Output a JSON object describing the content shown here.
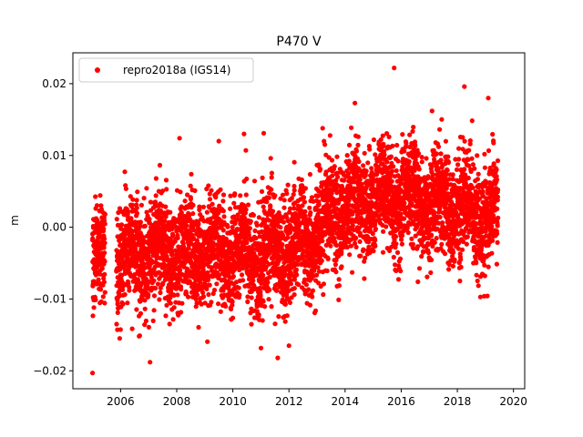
{
  "chart_data": {
    "type": "scatter",
    "title": "P470 V",
    "xlabel": "",
    "ylabel": "m",
    "xlim": [
      2004.3,
      2020.4
    ],
    "ylim": [
      -0.0225,
      0.0243
    ],
    "xticks": [
      2006,
      2008,
      2010,
      2012,
      2014,
      2016,
      2018,
      2020
    ],
    "xtick_labels": [
      "2006",
      "2008",
      "2010",
      "2012",
      "2014",
      "2016",
      "2018",
      "2020"
    ],
    "yticks": [
      -0.02,
      -0.01,
      0.0,
      0.01,
      0.02
    ],
    "ytick_labels": [
      "−0.02",
      "−0.01",
      "0.00",
      "0.01",
      "0.02"
    ],
    "legend_position": "top-left",
    "grid": false,
    "series": [
      {
        "name": "repro2018a (IGS14)",
        "color": "#ff0000",
        "marker": "circle",
        "x_range": [
          2005.0,
          2019.45
        ],
        "trend": [
          [
            2005.0,
            -0.004
          ],
          [
            2005.5,
            -0.004
          ],
          [
            2006.0,
            -0.004
          ],
          [
            2008.0,
            -0.0035
          ],
          [
            2010.0,
            -0.0035
          ],
          [
            2011.5,
            -0.004
          ],
          [
            2012.0,
            -0.003
          ],
          [
            2013.0,
            -0.0005
          ],
          [
            2014.0,
            0.003
          ],
          [
            2015.0,
            0.004
          ],
          [
            2015.9,
            0.0045
          ],
          [
            2016.0,
            0.005
          ],
          [
            2017.0,
            0.003
          ],
          [
            2018.0,
            0.0025
          ],
          [
            2019.0,
            0.002
          ],
          [
            2019.45,
            0.0015
          ]
        ],
        "gaps": [
          [
            2005.45,
            2005.85
          ]
        ],
        "outliers": [
          [
            2005.0,
            -0.0203
          ],
          [
            2007.05,
            -0.0188
          ],
          [
            2011.6,
            -0.0182
          ],
          [
            2012.0,
            -0.0165
          ],
          [
            2015.75,
            0.0222
          ],
          [
            2018.25,
            0.0196
          ],
          [
            2019.1,
            0.018
          ],
          [
            2014.35,
            0.0173
          ],
          [
            2010.4,
            0.013
          ],
          [
            2011.1,
            0.0131
          ],
          [
            2008.1,
            0.0124
          ],
          [
            2009.5,
            0.012
          ],
          [
            2013.2,
            0.0138
          ],
          [
            2017.1,
            0.0162
          ]
        ]
      }
    ]
  }
}
